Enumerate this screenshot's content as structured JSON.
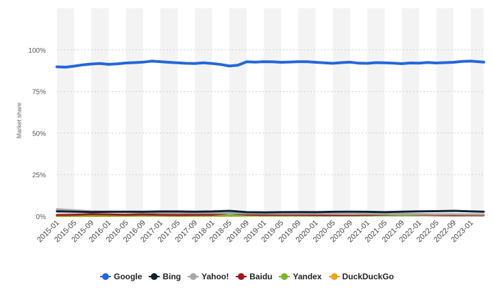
{
  "chart_data": {
    "type": "line",
    "title": "",
    "xlabel": "",
    "ylabel": "Market share",
    "ylim": [
      0,
      125
    ],
    "y_ticks": [
      {
        "value": 0,
        "label": "0%"
      },
      {
        "value": 25,
        "label": "25%"
      },
      {
        "value": 50,
        "label": "50%"
      },
      {
        "value": 75,
        "label": "75%"
      },
      {
        "value": 100,
        "label": "100%"
      }
    ],
    "x_start": "2015-01",
    "x_end": "2023-04",
    "x_tick_labels": [
      "2015-01",
      "2015-05",
      "2015-09",
      "2016-01",
      "2016-05",
      "2016-09",
      "2017-01",
      "2017-05",
      "2017-09",
      "2018-01",
      "2018-05",
      "2018-09",
      "2019-01",
      "2019-05",
      "2019-09",
      "2020-01",
      "2020-05",
      "2020-09",
      "2021-01",
      "2021-05",
      "2021-09",
      "2022-01",
      "2022-05",
      "2022-09",
      "2023-01"
    ],
    "grid": "alternating vertical bands, dotted horizontal lines",
    "legend_position": "bottom",
    "series": [
      {
        "name": "Google",
        "color": "#2466d8",
        "values": [
          [
            "2015-01",
            89.8
          ],
          [
            "2015-03",
            89.6
          ],
          [
            "2015-05",
            90.2
          ],
          [
            "2015-07",
            91.0
          ],
          [
            "2015-09",
            91.5
          ],
          [
            "2015-11",
            91.8
          ],
          [
            "2016-01",
            91.3
          ],
          [
            "2016-03",
            91.6
          ],
          [
            "2016-05",
            92.1
          ],
          [
            "2016-07",
            92.3
          ],
          [
            "2016-09",
            92.6
          ],
          [
            "2016-11",
            93.2
          ],
          [
            "2017-01",
            92.9
          ],
          [
            "2017-03",
            92.5
          ],
          [
            "2017-05",
            92.2
          ],
          [
            "2017-07",
            91.9
          ],
          [
            "2017-09",
            91.8
          ],
          [
            "2017-11",
            92.2
          ],
          [
            "2018-01",
            91.8
          ],
          [
            "2018-03",
            91.2
          ],
          [
            "2018-05",
            90.3
          ],
          [
            "2018-07",
            90.8
          ],
          [
            "2018-09",
            92.8
          ],
          [
            "2018-11",
            92.6
          ],
          [
            "2019-01",
            92.9
          ],
          [
            "2019-03",
            92.8
          ],
          [
            "2019-05",
            92.5
          ],
          [
            "2019-07",
            92.7
          ],
          [
            "2019-09",
            92.9
          ],
          [
            "2019-11",
            92.9
          ],
          [
            "2020-01",
            92.5
          ],
          [
            "2020-03",
            92.2
          ],
          [
            "2020-05",
            91.9
          ],
          [
            "2020-07",
            92.3
          ],
          [
            "2020-09",
            92.6
          ],
          [
            "2020-11",
            92.0
          ],
          [
            "2021-01",
            91.9
          ],
          [
            "2021-03",
            92.3
          ],
          [
            "2021-05",
            92.2
          ],
          [
            "2021-07",
            92.0
          ],
          [
            "2021-09",
            91.7
          ],
          [
            "2021-11",
            92.1
          ],
          [
            "2022-01",
            92.0
          ],
          [
            "2022-03",
            92.4
          ],
          [
            "2022-05",
            92.1
          ],
          [
            "2022-07",
            92.3
          ],
          [
            "2022-09",
            92.5
          ],
          [
            "2022-11",
            93.0
          ],
          [
            "2023-01",
            93.2
          ],
          [
            "2023-04",
            92.6
          ]
        ]
      },
      {
        "name": "Bing",
        "color": "#0e1f33",
        "values": [
          [
            "2015-01",
            3.0
          ],
          [
            "2015-05",
            2.8
          ],
          [
            "2015-09",
            2.6
          ],
          [
            "2016-01",
            2.7
          ],
          [
            "2016-05",
            2.8
          ],
          [
            "2016-09",
            2.7
          ],
          [
            "2017-01",
            2.9
          ],
          [
            "2017-05",
            2.9
          ],
          [
            "2017-09",
            2.8
          ],
          [
            "2018-01",
            2.9
          ],
          [
            "2018-05",
            3.3
          ],
          [
            "2018-09",
            2.5
          ],
          [
            "2019-01",
            2.4
          ],
          [
            "2019-05",
            2.5
          ],
          [
            "2019-09",
            2.6
          ],
          [
            "2020-01",
            2.5
          ],
          [
            "2020-05",
            2.7
          ],
          [
            "2020-09",
            2.8
          ],
          [
            "2021-01",
            2.7
          ],
          [
            "2021-05",
            2.5
          ],
          [
            "2021-09",
            2.8
          ],
          [
            "2022-01",
            3.0
          ],
          [
            "2022-05",
            3.1
          ],
          [
            "2022-09",
            3.3
          ],
          [
            "2023-01",
            3.0
          ],
          [
            "2023-04",
            2.8
          ]
        ]
      },
      {
        "name": "Yahoo!",
        "color": "#a6a6a6",
        "values": [
          [
            "2015-01",
            4.2
          ],
          [
            "2015-05",
            3.6
          ],
          [
            "2015-09",
            3.0
          ],
          [
            "2016-01",
            2.8
          ],
          [
            "2016-05",
            2.6
          ],
          [
            "2016-09",
            2.4
          ],
          [
            "2017-01",
            2.2
          ],
          [
            "2017-05",
            2.1
          ],
          [
            "2017-09",
            2.0
          ],
          [
            "2018-01",
            2.0
          ],
          [
            "2018-05",
            1.9
          ],
          [
            "2018-09",
            1.8
          ],
          [
            "2019-01",
            1.7
          ],
          [
            "2019-05",
            1.6
          ],
          [
            "2019-09",
            1.6
          ],
          [
            "2020-01",
            1.6
          ],
          [
            "2020-05",
            1.5
          ],
          [
            "2020-09",
            1.4
          ],
          [
            "2021-01",
            1.5
          ],
          [
            "2021-05",
            1.4
          ],
          [
            "2021-09",
            1.3
          ],
          [
            "2022-01",
            1.3
          ],
          [
            "2022-05",
            1.2
          ],
          [
            "2022-09",
            1.2
          ],
          [
            "2023-01",
            1.2
          ],
          [
            "2023-04",
            1.1
          ]
        ]
      },
      {
        "name": "Baidu",
        "color": "#9b1c1f",
        "values": [
          [
            "2015-01",
            0.8
          ],
          [
            "2015-05",
            1.0
          ],
          [
            "2015-09",
            1.3
          ],
          [
            "2016-01",
            1.2
          ],
          [
            "2016-05",
            0.9
          ],
          [
            "2016-09",
            1.2
          ],
          [
            "2017-01",
            0.9
          ],
          [
            "2017-05",
            0.8
          ],
          [
            "2017-09",
            0.9
          ],
          [
            "2018-01",
            1.0
          ],
          [
            "2018-05",
            1.9
          ],
          [
            "2018-09",
            1.1
          ],
          [
            "2019-01",
            0.9
          ],
          [
            "2019-05",
            0.9
          ],
          [
            "2019-09",
            0.9
          ],
          [
            "2020-01",
            0.8
          ],
          [
            "2020-05",
            0.7
          ],
          [
            "2020-09",
            0.7
          ],
          [
            "2021-01",
            0.9
          ],
          [
            "2021-05",
            1.1
          ],
          [
            "2021-09",
            1.4
          ],
          [
            "2022-01",
            1.1
          ],
          [
            "2022-05",
            0.8
          ],
          [
            "2022-09",
            0.6
          ],
          [
            "2023-01",
            0.8
          ],
          [
            "2023-04",
            0.7
          ]
        ]
      },
      {
        "name": "Yandex",
        "color": "#79b62e",
        "values": [
          [
            "2015-01",
            0.5
          ],
          [
            "2015-05",
            0.5
          ],
          [
            "2015-09",
            0.5
          ],
          [
            "2016-01",
            0.5
          ],
          [
            "2016-05",
            0.5
          ],
          [
            "2016-09",
            0.6
          ],
          [
            "2017-01",
            0.5
          ],
          [
            "2017-05",
            0.5
          ],
          [
            "2017-09",
            0.5
          ],
          [
            "2018-01",
            0.5
          ],
          [
            "2018-05",
            0.5
          ],
          [
            "2018-09",
            0.5
          ],
          [
            "2019-01",
            0.5
          ],
          [
            "2019-05",
            0.5
          ],
          [
            "2019-09",
            0.5
          ],
          [
            "2020-01",
            0.5
          ],
          [
            "2020-05",
            0.5
          ],
          [
            "2020-09",
            0.5
          ],
          [
            "2021-01",
            0.5
          ],
          [
            "2021-05",
            0.6
          ],
          [
            "2021-09",
            0.6
          ],
          [
            "2022-01",
            0.8
          ],
          [
            "2022-05",
            1.0
          ],
          [
            "2022-09",
            1.1
          ],
          [
            "2023-01",
            1.0
          ],
          [
            "2023-04",
            1.0
          ]
        ]
      },
      {
        "name": "DuckDuckGo",
        "color": "#e8a520",
        "values": [
          [
            "2015-01",
            0.2
          ],
          [
            "2015-05",
            0.2
          ],
          [
            "2015-09",
            0.2
          ],
          [
            "2016-01",
            0.2
          ],
          [
            "2016-05",
            0.3
          ],
          [
            "2016-09",
            0.3
          ],
          [
            "2017-01",
            0.3
          ],
          [
            "2017-05",
            0.3
          ],
          [
            "2017-09",
            0.3
          ],
          [
            "2018-01",
            0.3
          ],
          [
            "2018-05",
            0.3
          ],
          [
            "2018-09",
            0.4
          ],
          [
            "2019-01",
            0.4
          ],
          [
            "2019-05",
            0.4
          ],
          [
            "2019-09",
            0.5
          ],
          [
            "2020-01",
            0.5
          ],
          [
            "2020-05",
            0.6
          ],
          [
            "2020-09",
            0.6
          ],
          [
            "2021-01",
            0.6
          ],
          [
            "2021-05",
            0.6
          ],
          [
            "2021-09",
            0.7
          ],
          [
            "2022-01",
            0.7
          ],
          [
            "2022-05",
            0.7
          ],
          [
            "2022-09",
            0.6
          ],
          [
            "2023-01",
            0.6
          ],
          [
            "2023-04",
            0.6
          ]
        ]
      }
    ]
  }
}
